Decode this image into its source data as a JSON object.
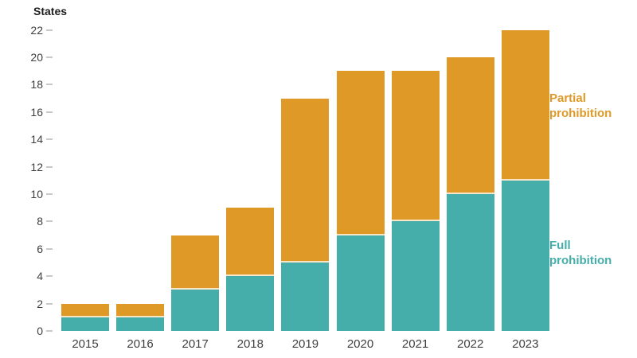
{
  "chart_data": {
    "type": "bar",
    "stacked": true,
    "title": "States",
    "ylabel": "States",
    "xlabel": "",
    "categories": [
      "2015",
      "2016",
      "2017",
      "2018",
      "2019",
      "2020",
      "2021",
      "2022",
      "2023"
    ],
    "series": [
      {
        "name": "Full prohibition",
        "color": "#45AEAB",
        "values": [
          1,
          1,
          3,
          4,
          5,
          7,
          8,
          10,
          11
        ]
      },
      {
        "name": "Partial prohibition",
        "color": "#DF9927",
        "values": [
          1,
          1,
          4,
          5,
          12,
          12,
          11,
          10,
          11
        ]
      }
    ],
    "totals": [
      2,
      2,
      7,
      9,
      17,
      19,
      19,
      20,
      22
    ],
    "yticks": [
      0,
      2,
      4,
      6,
      8,
      10,
      12,
      14,
      16,
      18,
      20,
      22
    ],
    "ylim": [
      0,
      22
    ],
    "grid": false,
    "legend_position": "right",
    "legend": {
      "partial_label": "Partial prohibition",
      "partial_color": "#DF9927",
      "full_label": "Full prohibition",
      "full_color": "#45AEAB"
    },
    "axis": {
      "tick_dash_color": "#c9c9c9",
      "tick_label_color": "#3f3f3f",
      "title_color": "#1d1d1d"
    }
  }
}
